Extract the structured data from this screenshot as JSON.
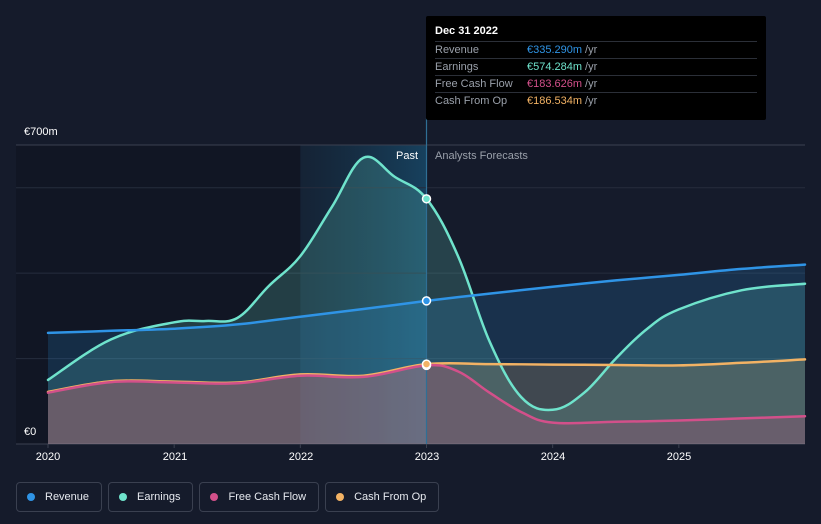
{
  "chart_data": {
    "type": "line",
    "title": "",
    "xlabel": "",
    "ylabel": "",
    "xlim": [
      2020,
      2026
    ],
    "ylim": [
      0,
      700
    ],
    "y_axis_labels": [
      "€700m",
      "€0"
    ],
    "x_ticks": [
      2020,
      2021,
      2022,
      2023,
      2024,
      2025
    ],
    "x_tick_labels": [
      "2020",
      "2021",
      "2022",
      "2023",
      "2024",
      "2025"
    ],
    "gridlines": [
      0,
      200,
      400,
      600,
      700
    ],
    "past_label": "Past",
    "forecast_label": "Analysts Forecasts",
    "past_region_start": 2022.0,
    "divider_x": 2023.0,
    "series": [
      {
        "name": "Revenue",
        "color": "#2f94e6",
        "x": [
          2020.0,
          2020.5,
          2021.0,
          2021.5,
          2022.0,
          2022.5,
          2023.0,
          2023.5,
          2024.0,
          2024.5,
          2025.0,
          2025.5,
          2026.0
        ],
        "values": [
          260,
          265,
          270,
          280,
          298,
          316,
          335,
          352,
          368,
          383,
          396,
          410,
          420
        ]
      },
      {
        "name": "Earnings",
        "color": "#6fe3cc",
        "x": [
          2020.0,
          2020.5,
          2021.0,
          2021.25,
          2021.5,
          2021.75,
          2022.0,
          2022.25,
          2022.5,
          2022.75,
          2023.0,
          2023.25,
          2023.5,
          2023.75,
          2024.0,
          2024.25,
          2024.5,
          2024.75,
          2025.0,
          2025.5,
          2026.0
        ],
        "values": [
          150,
          245,
          285,
          288,
          295,
          370,
          440,
          555,
          670,
          625,
          574,
          440,
          240,
          110,
          80,
          120,
          200,
          270,
          315,
          360,
          375
        ]
      },
      {
        "name": "Free Cash Flow",
        "color": "#d2508a",
        "x": [
          2020.0,
          2020.5,
          2021.0,
          2021.5,
          2022.0,
          2022.5,
          2023.0,
          2023.25,
          2023.5,
          2023.75,
          2024.0,
          2024.5,
          2025.0,
          2025.5,
          2026.0
        ],
        "values": [
          120,
          145,
          144,
          142,
          160,
          157,
          184,
          170,
          120,
          75,
          50,
          52,
          55,
          60,
          65
        ]
      },
      {
        "name": "Cash From Op",
        "color": "#f2b264",
        "x": [
          2020.0,
          2020.5,
          2021.0,
          2021.5,
          2022.0,
          2022.5,
          2023.0,
          2023.5,
          2024.0,
          2024.5,
          2025.0,
          2025.5,
          2026.0
        ],
        "values": [
          122,
          147,
          146,
          144,
          163,
          160,
          187,
          187,
          186,
          185,
          184,
          190,
          198
        ]
      }
    ],
    "tooltip": {
      "date": "Dec 31 2022",
      "x": 2023.0,
      "rows": [
        {
          "name": "Revenue",
          "value": "€335.290m",
          "unit": "/yr",
          "color": "#2f94e6"
        },
        {
          "name": "Earnings",
          "value": "€574.284m",
          "unit": "/yr",
          "color": "#6fe3cc"
        },
        {
          "name": "Free Cash Flow",
          "value": "€183.626m",
          "unit": "/yr",
          "color": "#d2508a"
        },
        {
          "name": "Cash From Op",
          "value": "€186.534m",
          "unit": "/yr",
          "color": "#f2b264"
        }
      ]
    },
    "legend": [
      {
        "name": "Revenue",
        "color": "#2f94e6"
      },
      {
        "name": "Earnings",
        "color": "#6fe3cc"
      },
      {
        "name": "Free Cash Flow",
        "color": "#d2508a"
      },
      {
        "name": "Cash From Op",
        "color": "#f2b264"
      }
    ]
  }
}
